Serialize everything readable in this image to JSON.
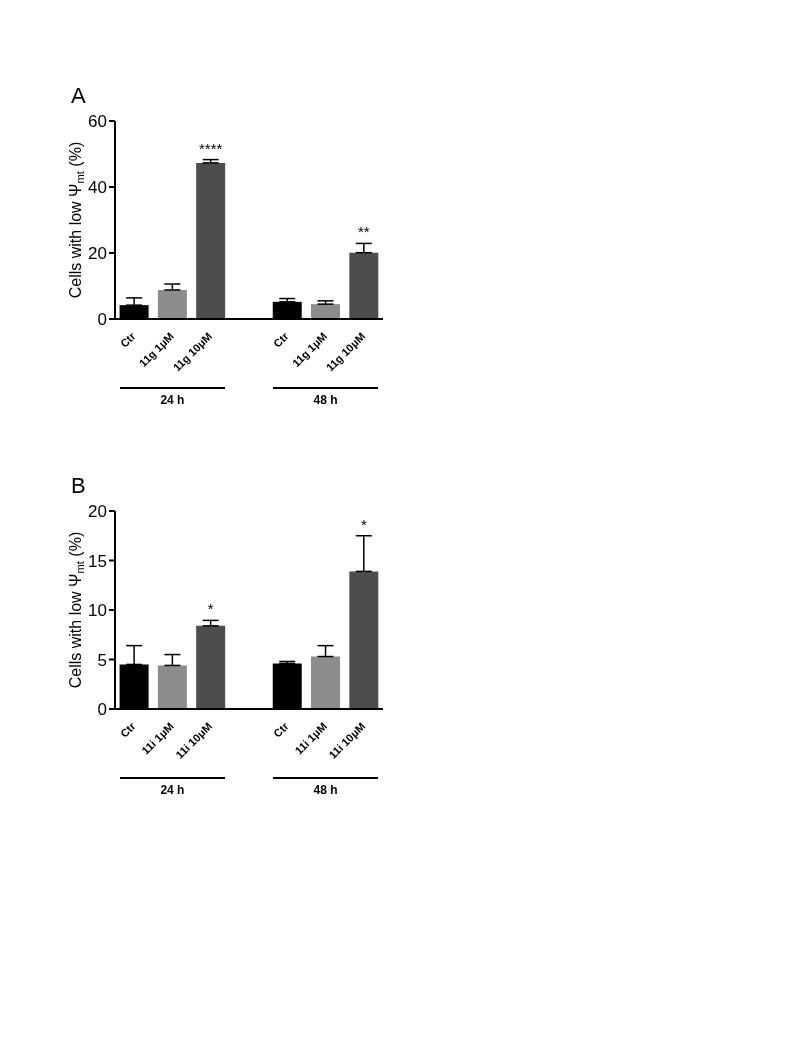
{
  "chart_data": [
    {
      "type": "bar",
      "title": "A",
      "ylabel": "Cells with low Ψ$_{mt}$ (%)",
      "categories": [
        "Ctr",
        "11g 1μM",
        "11g 10μM",
        null,
        "Ctr",
        "11g 1μM",
        "11g 10μM"
      ],
      "values": [
        4.2,
        8.8,
        47.3,
        null,
        5.2,
        4.5,
        20.1
      ],
      "colors": [
        "#000000",
        "#8c8c8c",
        "#4d4d4d",
        "#000000",
        "#000000",
        "#8c8c8c",
        "#4d4d4d"
      ],
      "errors": [
        [
          4.2,
          6.4
        ],
        [
          8.8,
          10.6
        ],
        [
          47.3,
          48.3
        ],
        null,
        [
          5.2,
          6.2
        ],
        [
          4.5,
          5.5
        ],
        [
          20.1,
          22.9
        ]
      ],
      "value_labels": [
        null,
        null,
        "****",
        null,
        null,
        null,
        "**"
      ],
      "ylim": [
        0,
        60
      ],
      "yticks": [
        0,
        20,
        40,
        60
      ],
      "grid": false,
      "legend": false,
      "annotations": [
        "24 h",
        "48 h"
      ]
    },
    {
      "type": "bar",
      "title": "B",
      "ylabel": "Cells with low Ψ$_{mt}$ (%)",
      "categories": [
        "Ctr",
        "11i 1μM",
        "11i 10μM",
        null,
        "Ctr",
        "11i 1μM",
        "11i 10μM"
      ],
      "values": [
        4.5,
        4.4,
        8.4,
        null,
        4.6,
        5.3,
        13.9
      ],
      "colors": [
        "#000000",
        "#8c8c8c",
        "#4d4d4d",
        "#000000",
        "#000000",
        "#8c8c8c",
        "#4d4d4d"
      ],
      "errors": [
        [
          4.5,
          6.4
        ],
        [
          4.4,
          5.5
        ],
        [
          8.4,
          8.95
        ],
        null,
        [
          4.6,
          4.8
        ],
        [
          5.3,
          6.4
        ],
        [
          13.9,
          17.5
        ]
      ],
      "value_labels": [
        null,
        null,
        "*",
        null,
        null,
        null,
        "*"
      ],
      "ylim": [
        0,
        20
      ],
      "yticks": [
        0,
        5,
        10,
        15,
        20
      ],
      "grid": false,
      "legend": false,
      "annotations": [
        "24 h",
        "48 h"
      ]
    }
  ]
}
